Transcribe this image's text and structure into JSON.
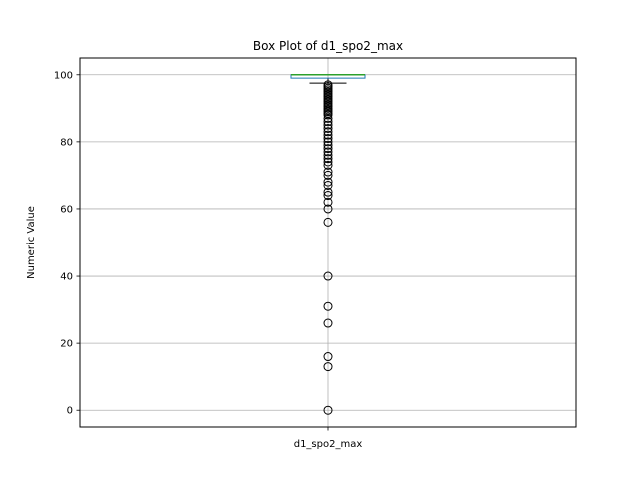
{
  "chart_data": {
    "type": "box",
    "title": "Box Plot of d1_spo2_max",
    "xlabel": "",
    "ylabel": "Numeric Value",
    "ylim": [
      -5,
      105
    ],
    "yticks": [
      0,
      20,
      40,
      60,
      80,
      100
    ],
    "grid": true,
    "categories": [
      "d1_spo2_max"
    ],
    "boxes": [
      {
        "name": "d1_spo2_max",
        "q1": 99,
        "median": 100,
        "q3": 100,
        "whisker_low": 97.5,
        "whisker_high": 100,
        "outliers": [
          97,
          96.5,
          96,
          95.5,
          95,
          94.5,
          94,
          93.5,
          93,
          92.5,
          92,
          91.5,
          91,
          90.5,
          90,
          89.5,
          89,
          88.5,
          88,
          87,
          86,
          85,
          84,
          83,
          82,
          81,
          80,
          79,
          78,
          77,
          76,
          75,
          74,
          73,
          71,
          70,
          68,
          67,
          65,
          64,
          62,
          60,
          56,
          40,
          31,
          26,
          16,
          13,
          0
        ]
      }
    ],
    "colors": {
      "box": "#1f77b4",
      "median": "#2ca02c",
      "whisker": "#000000",
      "outlier": "#000000",
      "grid": "#b0b0b0"
    }
  }
}
